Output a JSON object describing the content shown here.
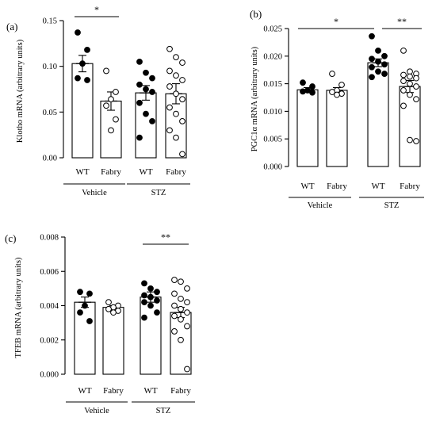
{
  "chart_data": [
    {
      "type": "bar",
      "panel": "(a)",
      "ylabel": "Klotho mRNA (arbitrary units)",
      "ylim": [
        0,
        0.15
      ],
      "yticks": [
        "0.00",
        "0.05",
        "0.10",
        "0.15"
      ],
      "categories": [
        "WT",
        "Fabry",
        "WT",
        "Fabry"
      ],
      "groups": [
        {
          "label": "Vehicle",
          "span": [
            0,
            1
          ]
        },
        {
          "label": "STZ",
          "span": [
            2,
            3
          ]
        }
      ],
      "bar_fill": [
        "filled",
        "open",
        "filled",
        "open"
      ],
      "series": [
        {
          "name": "Vehicle WT",
          "mean": 0.103,
          "sem": 0.009,
          "points": [
            0.137,
            0.118,
            0.103,
            0.087,
            0.085
          ]
        },
        {
          "name": "Vehicle Fabry",
          "mean": 0.062,
          "sem": 0.01,
          "points": [
            0.095,
            0.072,
            0.064,
            0.057,
            0.042,
            0.03
          ]
        },
        {
          "name": "STZ WT",
          "mean": 0.071,
          "sem": 0.008,
          "points": [
            0.105,
            0.093,
            0.087,
            0.08,
            0.075,
            0.072,
            0.06,
            0.048,
            0.04,
            0.022
          ]
        },
        {
          "name": "STZ Fabry",
          "mean": 0.07,
          "sem": 0.011,
          "points": [
            0.119,
            0.11,
            0.104,
            0.095,
            0.09,
            0.085,
            0.078,
            0.07,
            0.064,
            0.055,
            0.048,
            0.04,
            0.03,
            0.022,
            0.004
          ]
        }
      ],
      "significance": [
        {
          "from": 0,
          "to": 1,
          "label": "*"
        }
      ]
    },
    {
      "type": "bar",
      "panel": "(b)",
      "ylabel": "PGC1α mRNA (arbitrary units)",
      "ylim": [
        0,
        0.025
      ],
      "yticks": [
        "0.000",
        "0.005",
        "0.010",
        "0.015",
        "0.020",
        "0.025"
      ],
      "categories": [
        "WT",
        "Fabry",
        "WT",
        "Fabry"
      ],
      "groups": [
        {
          "label": "Vehicle",
          "span": [
            0,
            1
          ]
        },
        {
          "label": "STZ",
          "span": [
            2,
            3
          ]
        }
      ],
      "bar_fill": [
        "filled",
        "open",
        "filled",
        "open"
      ],
      "series": [
        {
          "name": "Vehicle WT",
          "mean": 0.0139,
          "sem": 0.0004,
          "points": [
            0.0152,
            0.0145,
            0.0138,
            0.0136,
            0.0134
          ]
        },
        {
          "name": "Vehicle Fabry",
          "mean": 0.0138,
          "sem": 0.0005,
          "points": [
            0.0168,
            0.0148,
            0.0138,
            0.0135,
            0.0132,
            0.013
          ]
        },
        {
          "name": "STZ WT",
          "mean": 0.0188,
          "sem": 0.0007,
          "points": [
            0.0236,
            0.021,
            0.02,
            0.0195,
            0.019,
            0.0185,
            0.018,
            0.0172,
            0.0168,
            0.0162
          ]
        },
        {
          "name": "STZ Fabry",
          "mean": 0.0145,
          "sem": 0.0011,
          "points": [
            0.021,
            0.0172,
            0.0168,
            0.0166,
            0.0163,
            0.016,
            0.0155,
            0.015,
            0.0145,
            0.0138,
            0.013,
            0.0122,
            0.011,
            0.0048,
            0.0046
          ]
        }
      ],
      "significance": [
        {
          "from": 0,
          "to": 2,
          "label": "*"
        },
        {
          "from": 2,
          "to": 3,
          "label": "**"
        }
      ]
    },
    {
      "type": "bar",
      "panel": "(c)",
      "ylabel": "TFEB mRNA (arbitrary units)",
      "ylim": [
        0,
        0.008
      ],
      "yticks": [
        "0.000",
        "0.002",
        "0.004",
        "0.006",
        "0.008"
      ],
      "categories": [
        "WT",
        "Fabry",
        "WT",
        "Fabry"
      ],
      "groups": [
        {
          "label": "Vehicle",
          "span": [
            0,
            1
          ]
        },
        {
          "label": "STZ",
          "span": [
            2,
            3
          ]
        }
      ],
      "bar_fill": [
        "filled",
        "open",
        "filled",
        "open"
      ],
      "series": [
        {
          "name": "Vehicle WT",
          "mean": 0.0042,
          "sem": 0.0003,
          "points": [
            0.0048,
            0.0047,
            0.004,
            0.0036,
            0.0031
          ]
        },
        {
          "name": "Vehicle Fabry",
          "mean": 0.0039,
          "sem": 0.0001,
          "points": [
            0.0042,
            0.004,
            0.0039,
            0.0038,
            0.0037,
            0.0036
          ]
        },
        {
          "name": "STZ WT",
          "mean": 0.0045,
          "sem": 0.0003,
          "points": [
            0.0053,
            0.005,
            0.0048,
            0.0046,
            0.0045,
            0.0043,
            0.0042,
            0.004,
            0.0036,
            0.0033
          ]
        },
        {
          "name": "STZ Fabry",
          "mean": 0.0036,
          "sem": 0.0003,
          "points": [
            0.0055,
            0.0054,
            0.005,
            0.0047,
            0.0044,
            0.0042,
            0.004,
            0.0038,
            0.0036,
            0.0034,
            0.0032,
            0.0028,
            0.0025,
            0.002,
            0.0003
          ]
        }
      ],
      "significance": [
        {
          "from": 2,
          "to": 3,
          "label": "**"
        }
      ]
    }
  ]
}
